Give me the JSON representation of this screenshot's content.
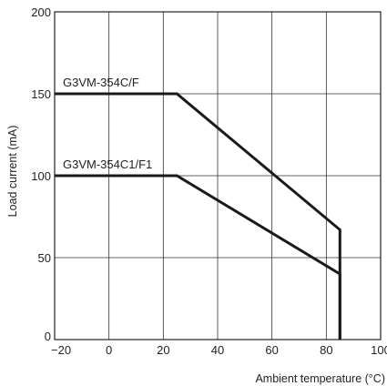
{
  "chart_data": {
    "type": "line",
    "xlabel": "Ambient temperature (°C)",
    "ylabel": "Load current (mA)",
    "xlim": [
      -20,
      100
    ],
    "ylim": [
      0,
      200
    ],
    "x_ticks": [
      -20,
      0,
      20,
      40,
      60,
      80,
      100
    ],
    "x_tick_labels": [
      "−20",
      "0",
      "20",
      "40",
      "60",
      "80",
      "100"
    ],
    "y_ticks": [
      0,
      50,
      100,
      150,
      200
    ],
    "y_tick_labels": [
      "0",
      "50",
      "100",
      "150",
      "200"
    ],
    "grid": true,
    "series": [
      {
        "name": "G3VM-354C/F",
        "x": [
          -20,
          25,
          85,
          85
        ],
        "y": [
          150,
          150,
          67,
          0
        ]
      },
      {
        "name": "G3VM-354C1/F1",
        "x": [
          -20,
          25,
          85,
          85
        ],
        "y": [
          100,
          100,
          40,
          0
        ]
      }
    ],
    "colors": {
      "line": "#1a1a1a",
      "grid": "#333333"
    }
  }
}
